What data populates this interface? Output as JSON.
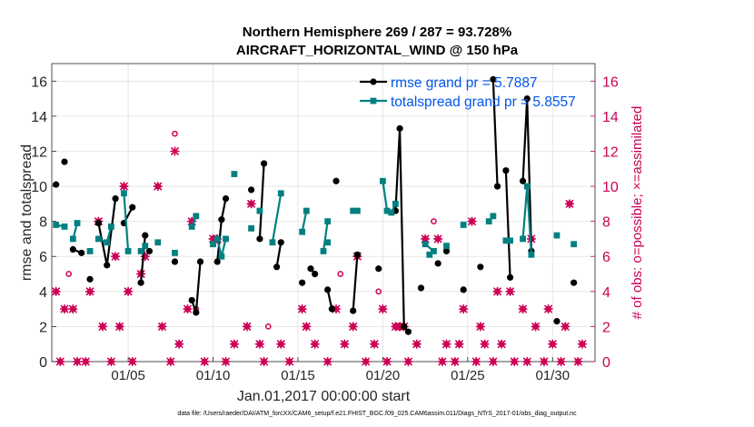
{
  "titles": {
    "line1": "Northern Hemisphere 269 / 287 = 93.728%",
    "line2": "AIRCRAFT_HORIZONTAL_WIND @ 150 hPa"
  },
  "footer": "data file: /Users/raeder/DAI/ATM_forcXX/CAM6_setup/f.e21.FHIST_BGC.f09_025.CAM6assim.011/Diags_NTrS_2017-01/obs_diag_output.nc",
  "colors": {
    "rmse": "#000000",
    "spread": "#008080",
    "obs": "#cc0055",
    "legend_text": "#0055ee"
  },
  "chart_data": {
    "type": "line",
    "xlabel": "Jan.01,2017 00:00:00 start",
    "ylabel_left": "rmse and totalspread",
    "ylabel_right": "# of obs: o=possible; ×=assimilated",
    "xlim": [
      0,
      32
    ],
    "ylim_left": [
      0,
      17
    ],
    "ylim_right": [
      0,
      17
    ],
    "xticks": [
      4.5,
      9.5,
      14.5,
      19.5,
      24.5,
      29.5
    ],
    "xtick_labels": [
      "01/05",
      "01/10",
      "01/15",
      "01/20",
      "01/25",
      "01/30"
    ],
    "yticks_left": [
      0,
      2,
      4,
      6,
      8,
      10,
      12,
      14,
      16
    ],
    "yticks_right": [
      0,
      2,
      4,
      6,
      8,
      10,
      12,
      14,
      16
    ],
    "grid": true,
    "legend_location": "top-right",
    "series": [
      {
        "name": "rmse grand pr = 5.7887",
        "segments": [
          [
            [
              0.25,
              10.1
            ]
          ],
          [
            [
              0.75,
              11.4
            ]
          ],
          [
            [
              1.25,
              6.4
            ],
            [
              1.75,
              6.2
            ]
          ],
          [
            [
              2.25,
              4.7
            ]
          ],
          [
            [
              2.75,
              7.9
            ],
            [
              3.25,
              5.5
            ],
            [
              3.75,
              9.3
            ]
          ],
          [
            [
              4.25,
              7.9
            ],
            [
              4.75,
              8.8
            ]
          ],
          [
            [
              5.75,
              6.3
            ]
          ],
          [
            [
              5.25,
              4.5
            ],
            [
              5.5,
              7.2
            ]
          ],
          [
            [
              7.25,
              5.7
            ]
          ],
          [
            [
              8.25,
              3.5
            ],
            [
              8.5,
              2.8
            ],
            [
              8.75,
              5.7
            ]
          ],
          [
            [
              9.75,
              5.7
            ],
            [
              10.0,
              8.1
            ],
            [
              10.25,
              9.3
            ]
          ],
          [
            [
              11.75,
              9.8
            ]
          ],
          [
            [
              12.25,
              7.0
            ],
            [
              12.5,
              11.3
            ]
          ],
          [
            [
              13.25,
              5.4
            ],
            [
              13.5,
              6.8
            ]
          ],
          [
            [
              15.25,
              5.3
            ],
            [
              15.5,
              5.0
            ]
          ],
          [
            [
              14.75,
              4.5
            ]
          ],
          [
            [
              16.75,
              10.3
            ]
          ],
          [
            [
              16.25,
              4.1
            ],
            [
              16.5,
              3.0
            ]
          ],
          [
            [
              17.75,
              2.9
            ],
            [
              18.0,
              6.1
            ]
          ],
          [
            [
              19.25,
              5.3
            ]
          ],
          [
            [
              20.25,
              8.6
            ],
            [
              20.5,
              13.3
            ],
            [
              20.75,
              2.0
            ],
            [
              21.0,
              1.7
            ]
          ],
          [
            [
              21.75,
              4.2
            ]
          ],
          [
            [
              22.75,
              5.6
            ]
          ],
          [
            [
              23.25,
              6.3
            ]
          ],
          [
            [
              24.25,
              4.1
            ]
          ],
          [
            [
              25.25,
              5.4
            ]
          ],
          [
            [
              26.0,
              16.1
            ],
            [
              26.25,
              10.0
            ]
          ],
          [
            [
              26.75,
              10.9
            ],
            [
              27.0,
              4.8
            ]
          ],
          [
            [
              27.75,
              10.3
            ],
            [
              28.0,
              15.0
            ],
            [
              28.25,
              6.3
            ]
          ],
          [
            [
              29.75,
              2.3
            ]
          ],
          [
            [
              30.75,
              4.5
            ]
          ]
        ]
      },
      {
        "name": "totalspread grand pr = 5.8557",
        "segments": [
          [
            [
              0.25,
              7.8
            ],
            [
              0.75,
              7.7
            ]
          ],
          [
            [
              1.25,
              7.0
            ],
            [
              1.5,
              7.9
            ]
          ],
          [
            [
              2.25,
              6.3
            ]
          ],
          [
            [
              2.75,
              7.0
            ],
            [
              3.25,
              6.8
            ],
            [
              3.5,
              7.7
            ]
          ],
          [
            [
              4.25,
              9.6
            ],
            [
              4.5,
              6.3
            ]
          ],
          [
            [
              5.25,
              6.3
            ],
            [
              5.5,
              6.6
            ]
          ],
          [
            [
              6.25,
              6.8
            ]
          ],
          [
            [
              7.25,
              6.2
            ]
          ],
          [
            [
              8.25,
              7.7
            ],
            [
              8.5,
              8.3
            ]
          ],
          [
            [
              9.5,
              6.7
            ],
            [
              9.75,
              7.0
            ],
            [
              10.0,
              6.0
            ],
            [
              10.25,
              7.0
            ]
          ],
          [
            [
              10.75,
              10.7
            ]
          ],
          [
            [
              11.75,
              7.6
            ]
          ],
          [
            [
              12.25,
              8.6
            ]
          ],
          [
            [
              13.0,
              6.8
            ],
            [
              13.5,
              9.6
            ]
          ],
          [
            [
              14.75,
              7.4
            ],
            [
              15.0,
              8.6
            ]
          ],
          [
            [
              16.0,
              6.3
            ],
            [
              16.25,
              8.0
            ]
          ],
          [
            [
              16.25,
              6.8
            ]
          ],
          [
            [
              17.75,
              8.6
            ],
            [
              18.0,
              8.6
            ]
          ],
          [
            [
              19.5,
              10.3
            ],
            [
              19.75,
              8.6
            ],
            [
              20.0,
              8.5
            ],
            [
              20.25,
              9.0
            ]
          ],
          [
            [
              22.0,
              6.7
            ],
            [
              22.5,
              6.3
            ]
          ],
          [
            [
              22.25,
              6.1
            ]
          ],
          [
            [
              23.25,
              6.6
            ]
          ],
          [
            [
              24.25,
              7.8
            ]
          ],
          [
            [
              25.75,
              8.0
            ],
            [
              26.0,
              8.3
            ]
          ],
          [
            [
              26.75,
              6.9
            ],
            [
              27.0,
              6.9
            ]
          ],
          [
            [
              27.75,
              7.0
            ],
            [
              28.0,
              10.0
            ],
            [
              28.25,
              6.1
            ]
          ],
          [
            [
              29.75,
              7.2
            ]
          ],
          [
            [
              30.75,
              6.7
            ]
          ]
        ]
      }
    ],
    "obs_possible": [
      [
        0.25,
        4
      ],
      [
        0.5,
        0
      ],
      [
        0.75,
        3
      ],
      [
        1.0,
        5
      ],
      [
        1.25,
        3
      ],
      [
        1.5,
        0
      ],
      [
        2.0,
        0
      ],
      [
        2.25,
        4
      ],
      [
        2.75,
        8
      ],
      [
        3.0,
        2
      ],
      [
        3.5,
        0
      ],
      [
        3.75,
        6
      ],
      [
        4.0,
        2
      ],
      [
        4.25,
        10
      ],
      [
        4.5,
        4
      ],
      [
        4.75,
        0
      ],
      [
        5.25,
        5
      ],
      [
        5.5,
        6
      ],
      [
        6.25,
        10
      ],
      [
        6.5,
        2
      ],
      [
        7.0,
        0
      ],
      [
        7.25,
        13
      ],
      [
        7.5,
        1
      ],
      [
        8.0,
        3
      ],
      [
        8.25,
        8
      ],
      [
        8.5,
        3
      ],
      [
        9.0,
        0
      ],
      [
        9.5,
        7
      ],
      [
        9.75,
        7
      ],
      [
        10.25,
        0
      ],
      [
        10.75,
        1
      ],
      [
        11.5,
        2
      ],
      [
        11.75,
        9
      ],
      [
        12.25,
        1
      ],
      [
        12.5,
        0
      ],
      [
        12.75,
        2
      ],
      [
        13.5,
        1
      ],
      [
        14.0,
        0
      ],
      [
        14.75,
        3
      ],
      [
        15.0,
        2
      ],
      [
        15.5,
        1
      ],
      [
        16.25,
        0
      ],
      [
        16.75,
        3
      ],
      [
        17.0,
        5
      ],
      [
        17.25,
        1
      ],
      [
        17.75,
        2
      ],
      [
        18.0,
        6
      ],
      [
        18.5,
        0
      ],
      [
        19.0,
        1
      ],
      [
        19.25,
        4
      ],
      [
        19.5,
        3
      ],
      [
        19.75,
        0
      ],
      [
        20.25,
        2
      ],
      [
        20.5,
        2
      ],
      [
        20.75,
        2
      ],
      [
        21.0,
        0
      ],
      [
        21.5,
        1
      ],
      [
        22.0,
        7
      ],
      [
        22.5,
        8
      ],
      [
        22.75,
        7
      ],
      [
        23.0,
        0
      ],
      [
        23.25,
        1
      ],
      [
        23.75,
        0
      ],
      [
        24.0,
        1
      ],
      [
        24.25,
        3
      ],
      [
        24.75,
        8
      ],
      [
        25.0,
        0
      ],
      [
        25.25,
        2
      ],
      [
        25.5,
        1
      ],
      [
        26.0,
        0
      ],
      [
        26.25,
        4
      ],
      [
        26.5,
        1
      ],
      [
        27.0,
        4
      ],
      [
        27.25,
        0
      ],
      [
        27.75,
        3
      ],
      [
        28.0,
        0
      ],
      [
        28.25,
        7
      ],
      [
        28.5,
        2
      ],
      [
        29.0,
        0
      ],
      [
        29.25,
        3
      ],
      [
        29.5,
        1
      ],
      [
        30.0,
        0
      ],
      [
        30.25,
        2
      ],
      [
        30.5,
        9
      ],
      [
        31.0,
        0
      ],
      [
        31.25,
        1
      ]
    ],
    "obs_assimilated": [
      [
        0.25,
        4
      ],
      [
        0.5,
        0
      ],
      [
        0.75,
        3
      ],
      [
        1.25,
        3
      ],
      [
        1.5,
        0
      ],
      [
        2.0,
        0
      ],
      [
        2.25,
        4
      ],
      [
        2.75,
        8
      ],
      [
        3.0,
        2
      ],
      [
        3.5,
        0
      ],
      [
        3.75,
        6
      ],
      [
        4.0,
        2
      ],
      [
        4.25,
        10
      ],
      [
        4.5,
        4
      ],
      [
        4.75,
        0
      ],
      [
        5.25,
        5
      ],
      [
        5.5,
        6
      ],
      [
        6.25,
        10
      ],
      [
        6.5,
        2
      ],
      [
        7.0,
        0
      ],
      [
        7.25,
        12
      ],
      [
        7.5,
        1
      ],
      [
        8.0,
        3
      ],
      [
        8.25,
        8
      ],
      [
        9.0,
        0
      ],
      [
        9.5,
        7
      ],
      [
        9.75,
        7
      ],
      [
        10.25,
        0
      ],
      [
        10.75,
        1
      ],
      [
        11.5,
        2
      ],
      [
        11.75,
        9
      ],
      [
        12.25,
        1
      ],
      [
        12.5,
        0
      ],
      [
        13.5,
        1
      ],
      [
        14.0,
        0
      ],
      [
        14.75,
        3
      ],
      [
        15.0,
        2
      ],
      [
        15.5,
        1
      ],
      [
        16.25,
        0
      ],
      [
        16.75,
        3
      ],
      [
        17.25,
        1
      ],
      [
        17.75,
        2
      ],
      [
        18.0,
        6
      ],
      [
        18.5,
        0
      ],
      [
        19.0,
        1
      ],
      [
        19.5,
        3
      ],
      [
        19.75,
        0
      ],
      [
        20.25,
        2
      ],
      [
        20.5,
        2
      ],
      [
        20.75,
        2
      ],
      [
        21.0,
        0
      ],
      [
        21.5,
        1
      ],
      [
        22.0,
        7
      ],
      [
        22.75,
        7
      ],
      [
        23.0,
        0
      ],
      [
        23.25,
        1
      ],
      [
        23.75,
        0
      ],
      [
        24.0,
        1
      ],
      [
        24.25,
        3
      ],
      [
        24.75,
        8
      ],
      [
        25.0,
        0
      ],
      [
        25.25,
        2
      ],
      [
        25.5,
        1
      ],
      [
        26.0,
        0
      ],
      [
        26.25,
        4
      ],
      [
        26.5,
        1
      ],
      [
        27.0,
        4
      ],
      [
        27.25,
        0
      ],
      [
        27.75,
        3
      ],
      [
        28.0,
        0
      ],
      [
        28.25,
        7
      ],
      [
        28.5,
        2
      ],
      [
        29.0,
        0
      ],
      [
        29.25,
        3
      ],
      [
        29.5,
        1
      ],
      [
        30.0,
        0
      ],
      [
        30.25,
        2
      ],
      [
        30.5,
        9
      ],
      [
        31.0,
        0
      ],
      [
        31.25,
        1
      ]
    ]
  }
}
